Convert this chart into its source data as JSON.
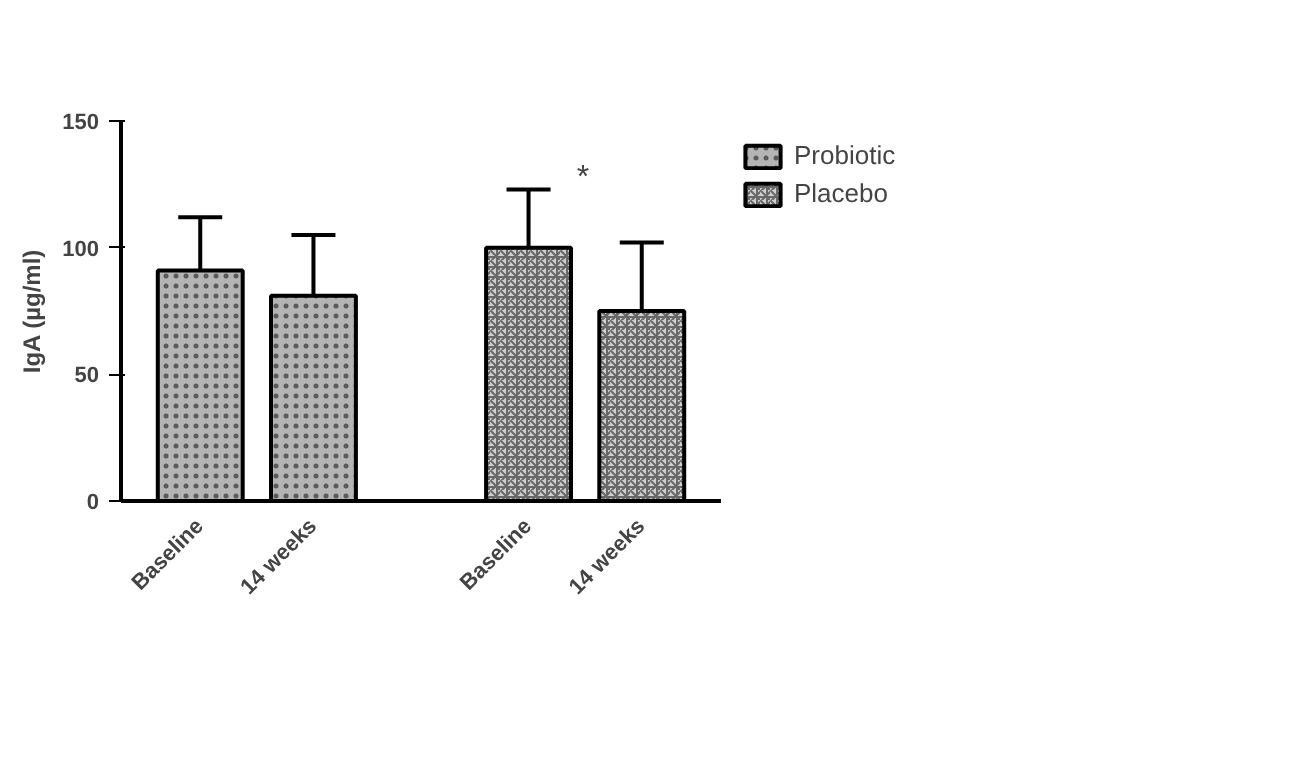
{
  "chart_data": {
    "type": "bar",
    "ylabel": "IgA (µg/ml)",
    "categories": [
      "Baseline",
      "14 weeks",
      "Baseline",
      "14 weeks"
    ],
    "series": [
      {
        "name": "Probiotic",
        "color": "#b4b4b4",
        "values": [
          91,
          81,
          null,
          null
        ],
        "errors": [
          [
            72,
            112
          ],
          [
            61,
            105
          ],
          null,
          null
        ]
      },
      {
        "name": "Placebo",
        "color": "#d0d0d0",
        "values": [
          null,
          null,
          100,
          75
        ],
        "errors": [
          null,
          null,
          [
            79,
            123
          ],
          [
            54,
            102
          ]
        ]
      }
    ],
    "ylim": [
      0,
      150
    ],
    "yticks": [
      0,
      50,
      100,
      150
    ],
    "grid": false,
    "legend": "top right",
    "annotations": [
      "*"
    ]
  }
}
